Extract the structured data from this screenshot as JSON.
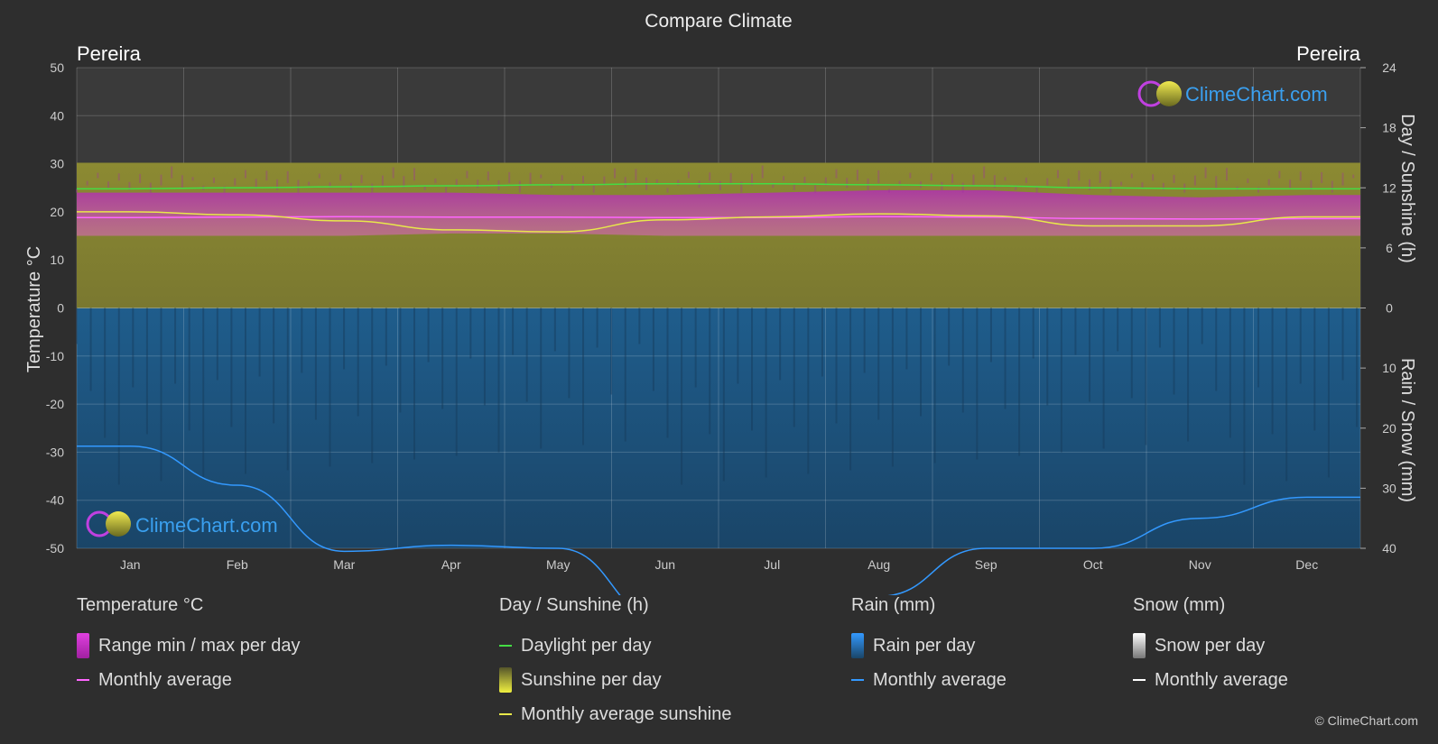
{
  "chart_data": {
    "type": "area",
    "title": "Compare Climate",
    "location_left": "Pereira",
    "location_right": "Pereira",
    "ylabel_left": "Temperature °C",
    "ylabel_right_top": "Day / Sunshine (h)",
    "ylabel_right_bottom": "Rain / Snow (mm)",
    "categories": [
      "Jan",
      "Feb",
      "Mar",
      "Apr",
      "May",
      "Jun",
      "Jul",
      "Aug",
      "Sep",
      "Oct",
      "Nov",
      "Dec"
    ],
    "temp_ticks": [
      50,
      40,
      30,
      20,
      10,
      0,
      -10,
      -20,
      -30,
      -40,
      -50
    ],
    "sun_ticks": [
      24,
      18,
      12,
      6,
      0
    ],
    "rain_ticks": [
      0,
      10,
      20,
      30,
      40
    ],
    "ylim_temp": [
      -50,
      50
    ],
    "ylim_sun": [
      0,
      24
    ],
    "ylim_rain": [
      0,
      40
    ],
    "series": [
      {
        "name": "Daylight per day",
        "unit": "h",
        "color": "#44dd44",
        "values": [
          11.9,
          12.0,
          12.1,
          12.2,
          12.3,
          12.4,
          12.4,
          12.3,
          12.2,
          12.0,
          11.9,
          11.9
        ]
      },
      {
        "name": "Monthly average sunshine",
        "unit": "h",
        "color": "#e8e84a",
        "values": [
          9.6,
          9.3,
          8.7,
          7.8,
          7.6,
          8.8,
          9.1,
          9.4,
          9.2,
          8.2,
          8.2,
          9.1
        ]
      },
      {
        "name": "Temperature monthly average",
        "unit": "°C",
        "color": "#ff66ff",
        "values": [
          18.8,
          18.9,
          19.0,
          18.9,
          18.9,
          18.8,
          18.8,
          19.0,
          18.9,
          18.6,
          18.5,
          18.6
        ]
      },
      {
        "name": "Temperature max per day",
        "unit": "°C",
        "values": [
          24,
          24,
          24,
          24,
          23.5,
          23.5,
          24,
          24.5,
          24.5,
          23.5,
          23,
          23.5
        ]
      },
      {
        "name": "Temperature min per day",
        "unit": "°C",
        "values": [
          15,
          15,
          15,
          15.5,
          15.5,
          15,
          15,
          15,
          15,
          15,
          15,
          15
        ]
      },
      {
        "name": "Rain monthly average",
        "unit": "mm",
        "color": "#3399ff",
        "values": [
          23,
          29.5,
          40.5,
          39.5,
          40,
          52,
          50,
          48,
          40,
          40,
          35,
          31.5
        ]
      }
    ],
    "grid": true
  },
  "logo_text": "ClimeChart.com",
  "legend": {
    "temp": {
      "title": "Temperature °C",
      "items": [
        "Range min / max per day",
        "Monthly average"
      ]
    },
    "sun": {
      "title": "Day / Sunshine (h)",
      "items": [
        "Daylight per day",
        "Sunshine per day",
        "Monthly average sunshine"
      ]
    },
    "rain": {
      "title": "Rain (mm)",
      "items": [
        "Rain per day",
        "Monthly average"
      ]
    },
    "snow": {
      "title": "Snow (mm)",
      "items": [
        "Snow per day",
        "Monthly average"
      ]
    }
  },
  "copyright": "© ClimeChart.com"
}
